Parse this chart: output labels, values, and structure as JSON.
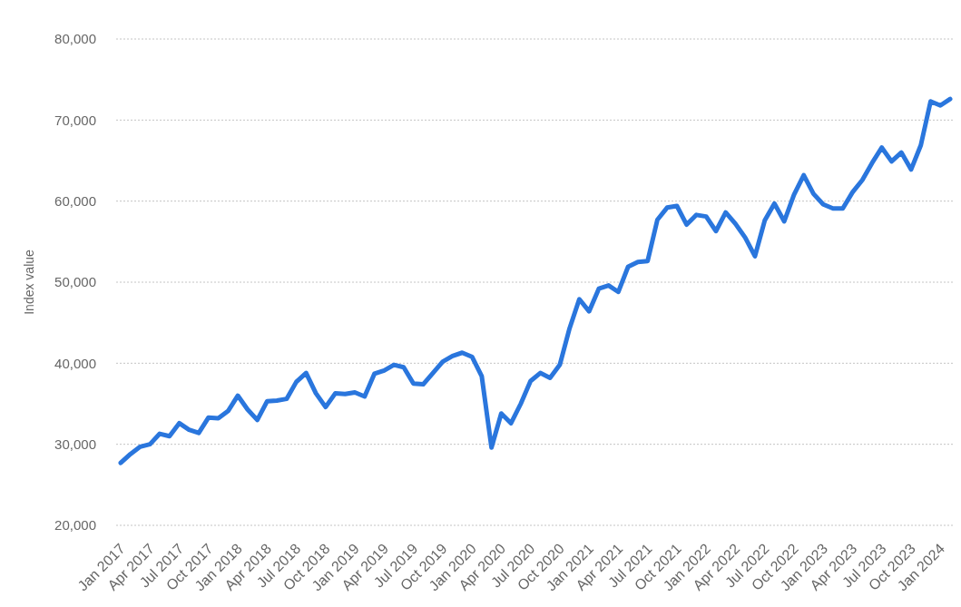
{
  "chart_data": {
    "type": "line",
    "ylabel": "Index value",
    "categories": [
      "Jan 2017",
      null,
      null,
      "Apr 2017",
      null,
      null,
      "Jul 2017",
      null,
      null,
      "Oct 2017",
      null,
      null,
      "Jan 2018",
      null,
      null,
      "Apr 2018",
      null,
      null,
      "Jul 2018",
      null,
      null,
      "Oct 2018",
      null,
      null,
      "Jan 2019",
      null,
      null,
      "Apr 2019",
      null,
      null,
      "Jul 2019",
      null,
      null,
      "Oct 2019",
      null,
      null,
      "Jan 2020",
      null,
      null,
      "Apr 2020",
      null,
      null,
      "Jul 2020",
      null,
      null,
      "Oct 2020",
      null,
      null,
      "Jan 2021",
      null,
      null,
      "Apr 2021",
      null,
      null,
      "Jul 2021",
      null,
      null,
      "Oct 2021",
      null,
      null,
      "Jan 2022",
      null,
      null,
      "Apr 2022",
      null,
      null,
      "Jul 2022",
      null,
      null,
      "Oct 2022",
      null,
      null,
      "Jan 2023",
      null,
      null,
      "Apr 2023",
      null,
      null,
      "Jul 2023",
      null,
      null,
      "Oct 2023",
      null,
      null,
      "Jan 2024",
      null
    ],
    "values": [
      27700,
      28800,
      29700,
      30000,
      31300,
      31000,
      32600,
      31800,
      31400,
      33300,
      33200,
      34100,
      36000,
      34300,
      33000,
      35300,
      35400,
      35600,
      37700,
      38800,
      36300,
      34600,
      36300,
      36200,
      36400,
      35900,
      38700,
      39100,
      39800,
      39500,
      37500,
      37400,
      38800,
      40200,
      40900,
      41300,
      40800,
      38400,
      29600,
      33800,
      32600,
      35000,
      37800,
      38800,
      38200,
      39800,
      44300,
      47900,
      46400,
      49200,
      49600,
      48800,
      51900,
      52500,
      52600,
      57700,
      59200,
      59400,
      57100,
      58300,
      58100,
      56300,
      58600,
      57200,
      55500,
      53200,
      57600,
      59700,
      57500,
      60800,
      63200,
      60900,
      59600,
      59100,
      59100,
      61100,
      62600,
      64700,
      66600,
      64900,
      66000,
      63900,
      66900,
      72300,
      71800,
      72600
    ],
    "color": "#2a76dd",
    "ylim": [
      20000,
      80000
    ],
    "yticks": [
      {
        "value": 20000,
        "label": "20,000"
      },
      {
        "value": 30000,
        "label": "30,000"
      },
      {
        "value": 40000,
        "label": "40,000"
      },
      {
        "value": 50000,
        "label": "50,000"
      },
      {
        "value": 60000,
        "label": "60,000"
      },
      {
        "value": 70000,
        "label": "70,000"
      },
      {
        "value": 80000,
        "label": "80,000"
      }
    ],
    "grid": "y"
  }
}
